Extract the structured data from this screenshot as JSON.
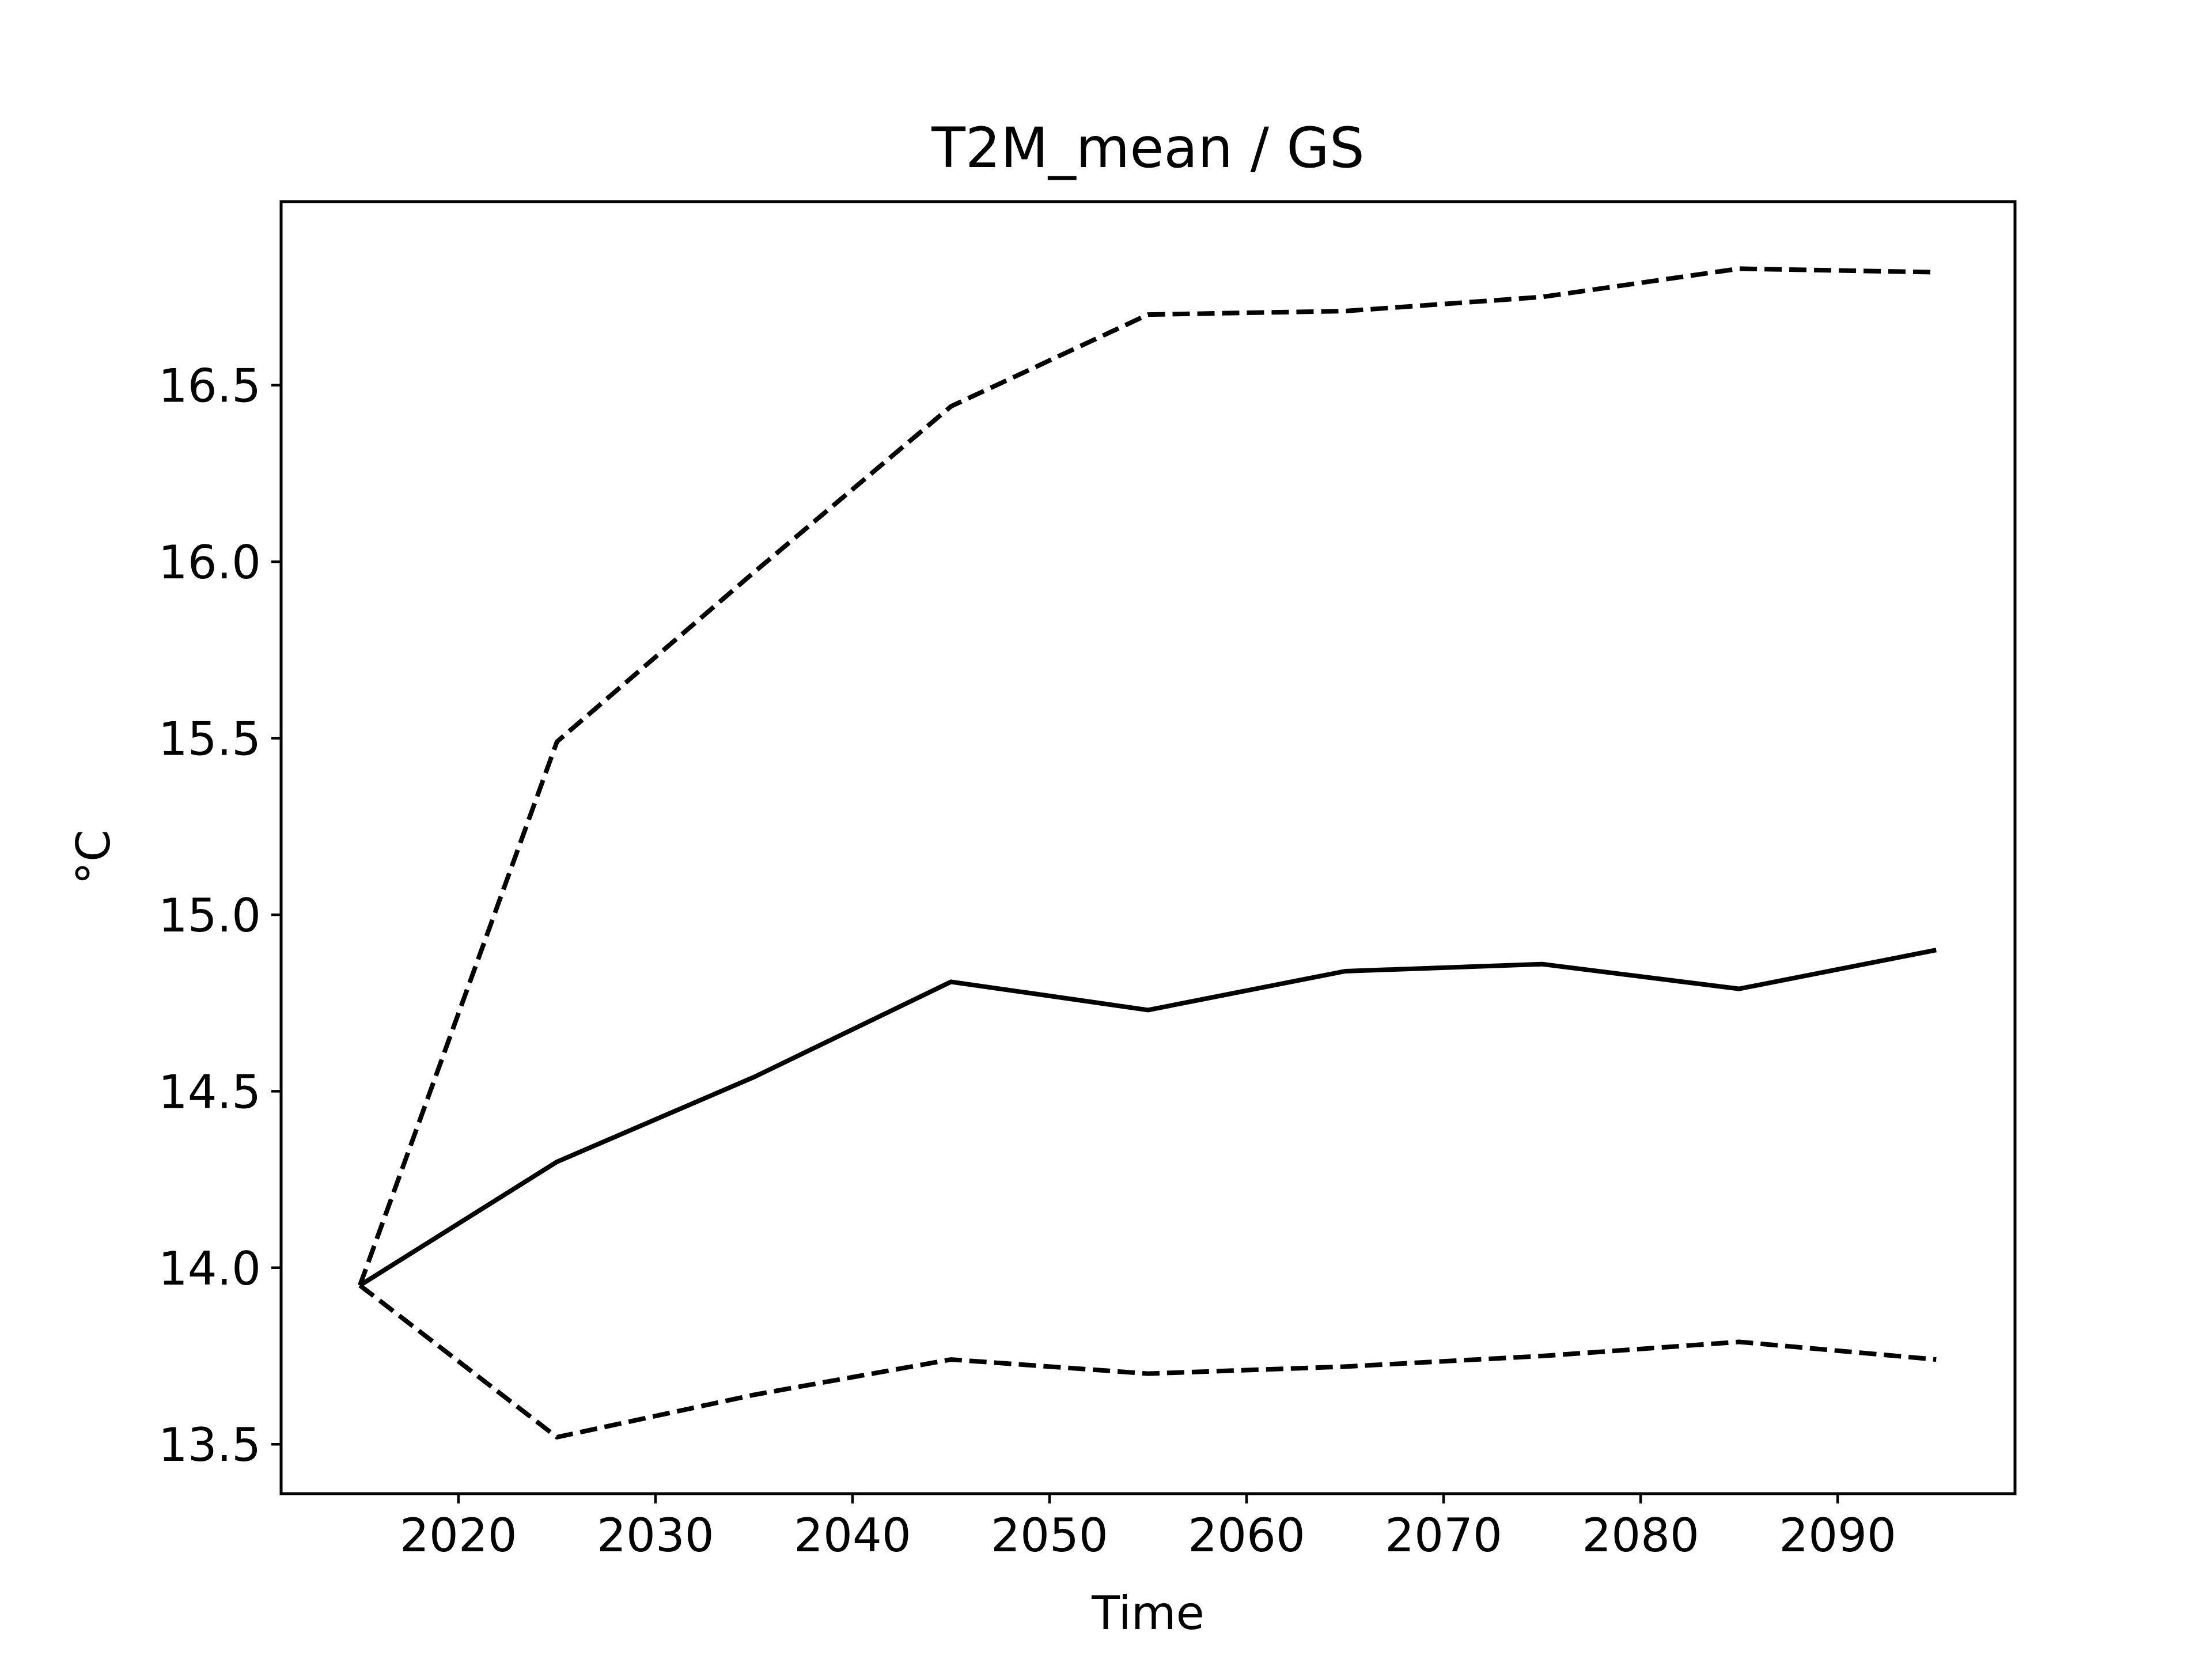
{
  "chart_data": {
    "type": "line",
    "title": "T2M_mean / GS",
    "xlabel": "Time",
    "ylabel": "°C",
    "xlim": [
      2011,
      2099
    ],
    "ylim": [
      13.36,
      17.02
    ],
    "xticks": [
      2020,
      2030,
      2040,
      2050,
      2060,
      2070,
      2080,
      2090
    ],
    "yticks": [
      13.5,
      14.0,
      14.5,
      15.0,
      15.5,
      16.0,
      16.5
    ],
    "ytick_labels": [
      "13.5",
      "14.0",
      "14.5",
      "15.0",
      "15.5",
      "16.0",
      "16.5"
    ],
    "grid": false,
    "x": [
      2015,
      2025,
      2035,
      2045,
      2055,
      2065,
      2075,
      2085,
      2095
    ],
    "series": [
      {
        "style": "dashed",
        "color": "#000000",
        "values": [
          13.95,
          15.49,
          15.97,
          16.44,
          16.7,
          16.71,
          16.75,
          16.83,
          16.82
        ]
      },
      {
        "style": "solid",
        "color": "#000000",
        "values": [
          13.95,
          14.3,
          14.54,
          14.81,
          14.73,
          14.84,
          14.86,
          14.79,
          14.9
        ]
      },
      {
        "style": "dashed",
        "color": "#000000",
        "values": [
          13.95,
          13.52,
          13.64,
          13.74,
          13.7,
          13.72,
          13.75,
          13.79,
          13.74
        ]
      }
    ]
  }
}
